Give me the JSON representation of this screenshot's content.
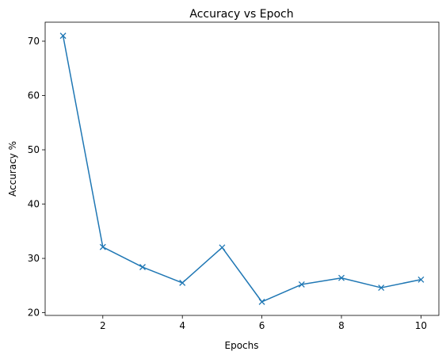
{
  "chart_data": {
    "type": "line",
    "title": "Accuracy vs Epoch",
    "xlabel": "Epochs",
    "ylabel": "Accuracy %",
    "xlim": [
      0.55,
      10.45
    ],
    "ylim": [
      19.5,
      73.5
    ],
    "xticks": [
      2,
      4,
      6,
      8,
      10
    ],
    "yticks": [
      20,
      30,
      40,
      50,
      60,
      70
    ],
    "grid": false,
    "series": [
      {
        "color": "#1f77b4",
        "marker": "x",
        "x": [
          1,
          2,
          3,
          4,
          5,
          6,
          7,
          8,
          9,
          10
        ],
        "y": [
          71.0,
          32.1,
          28.4,
          25.5,
          32.0,
          22.0,
          25.2,
          26.4,
          24.6,
          26.1
        ]
      }
    ]
  }
}
